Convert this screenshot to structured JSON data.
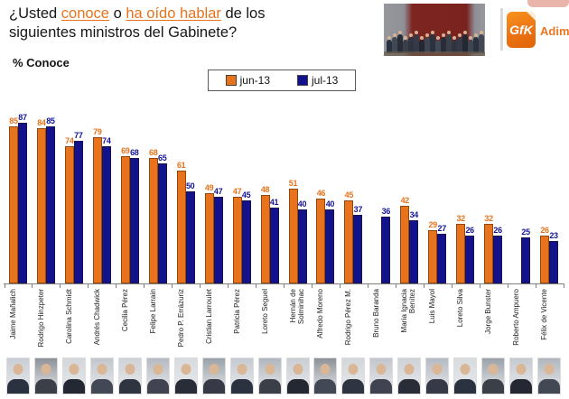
{
  "title": {
    "part1": "¿Usted ",
    "link1": "conoce",
    "part2": " o ",
    "link2": "ha oído hablar",
    "part3": " de los",
    "line2": "siguientes ministros del Gabinete?"
  },
  "subtitle": "% Conoce",
  "logo": {
    "gfk": "GfK",
    "adimark": "Adimark"
  },
  "colors": {
    "jun": "#E8731C",
    "jul": "#12128C",
    "title_highlight": "#E8731C"
  },
  "chart_data": {
    "type": "bar",
    "title": "% Conoce",
    "xlabel": "",
    "ylabel": "",
    "ylim": [
      0,
      100
    ],
    "grid": false,
    "legend_position": "top",
    "value_labels": true,
    "categories": [
      "Jaime Mañalich",
      "Rodrigo Hinzpeter",
      "Carolina Schmidt",
      "Andrés Chadwick",
      "Cecilia Pérez",
      "Felipe Larraín",
      "Pedro P. Errázuriz",
      "Cristian Larroulet",
      "Patricia Pérez",
      "Loreto Seguel",
      "Hernán de Solminihac",
      "Alfredo Moreno",
      "Rodrigo Pérez M.",
      "Bruno Baranda",
      "María Ignacia Benítez",
      "Luis Mayol",
      "Loreto Silva",
      "Jorge Bunster",
      "Roberto Ampuero",
      "Félix de Vicente"
    ],
    "series": [
      {
        "name": "jun-13",
        "color": "#E8731C",
        "values": [
          85,
          84,
          74,
          79,
          69,
          68,
          61,
          49,
          47,
          48,
          51,
          46,
          45,
          null,
          42,
          29,
          32,
          32,
          null,
          26
        ]
      },
      {
        "name": "jul-13",
        "color": "#12128C",
        "values": [
          87,
          85,
          77,
          74,
          68,
          65,
          50,
          47,
          45,
          41,
          40,
          40,
          37,
          36,
          34,
          27,
          26,
          26,
          25,
          23
        ]
      }
    ]
  }
}
